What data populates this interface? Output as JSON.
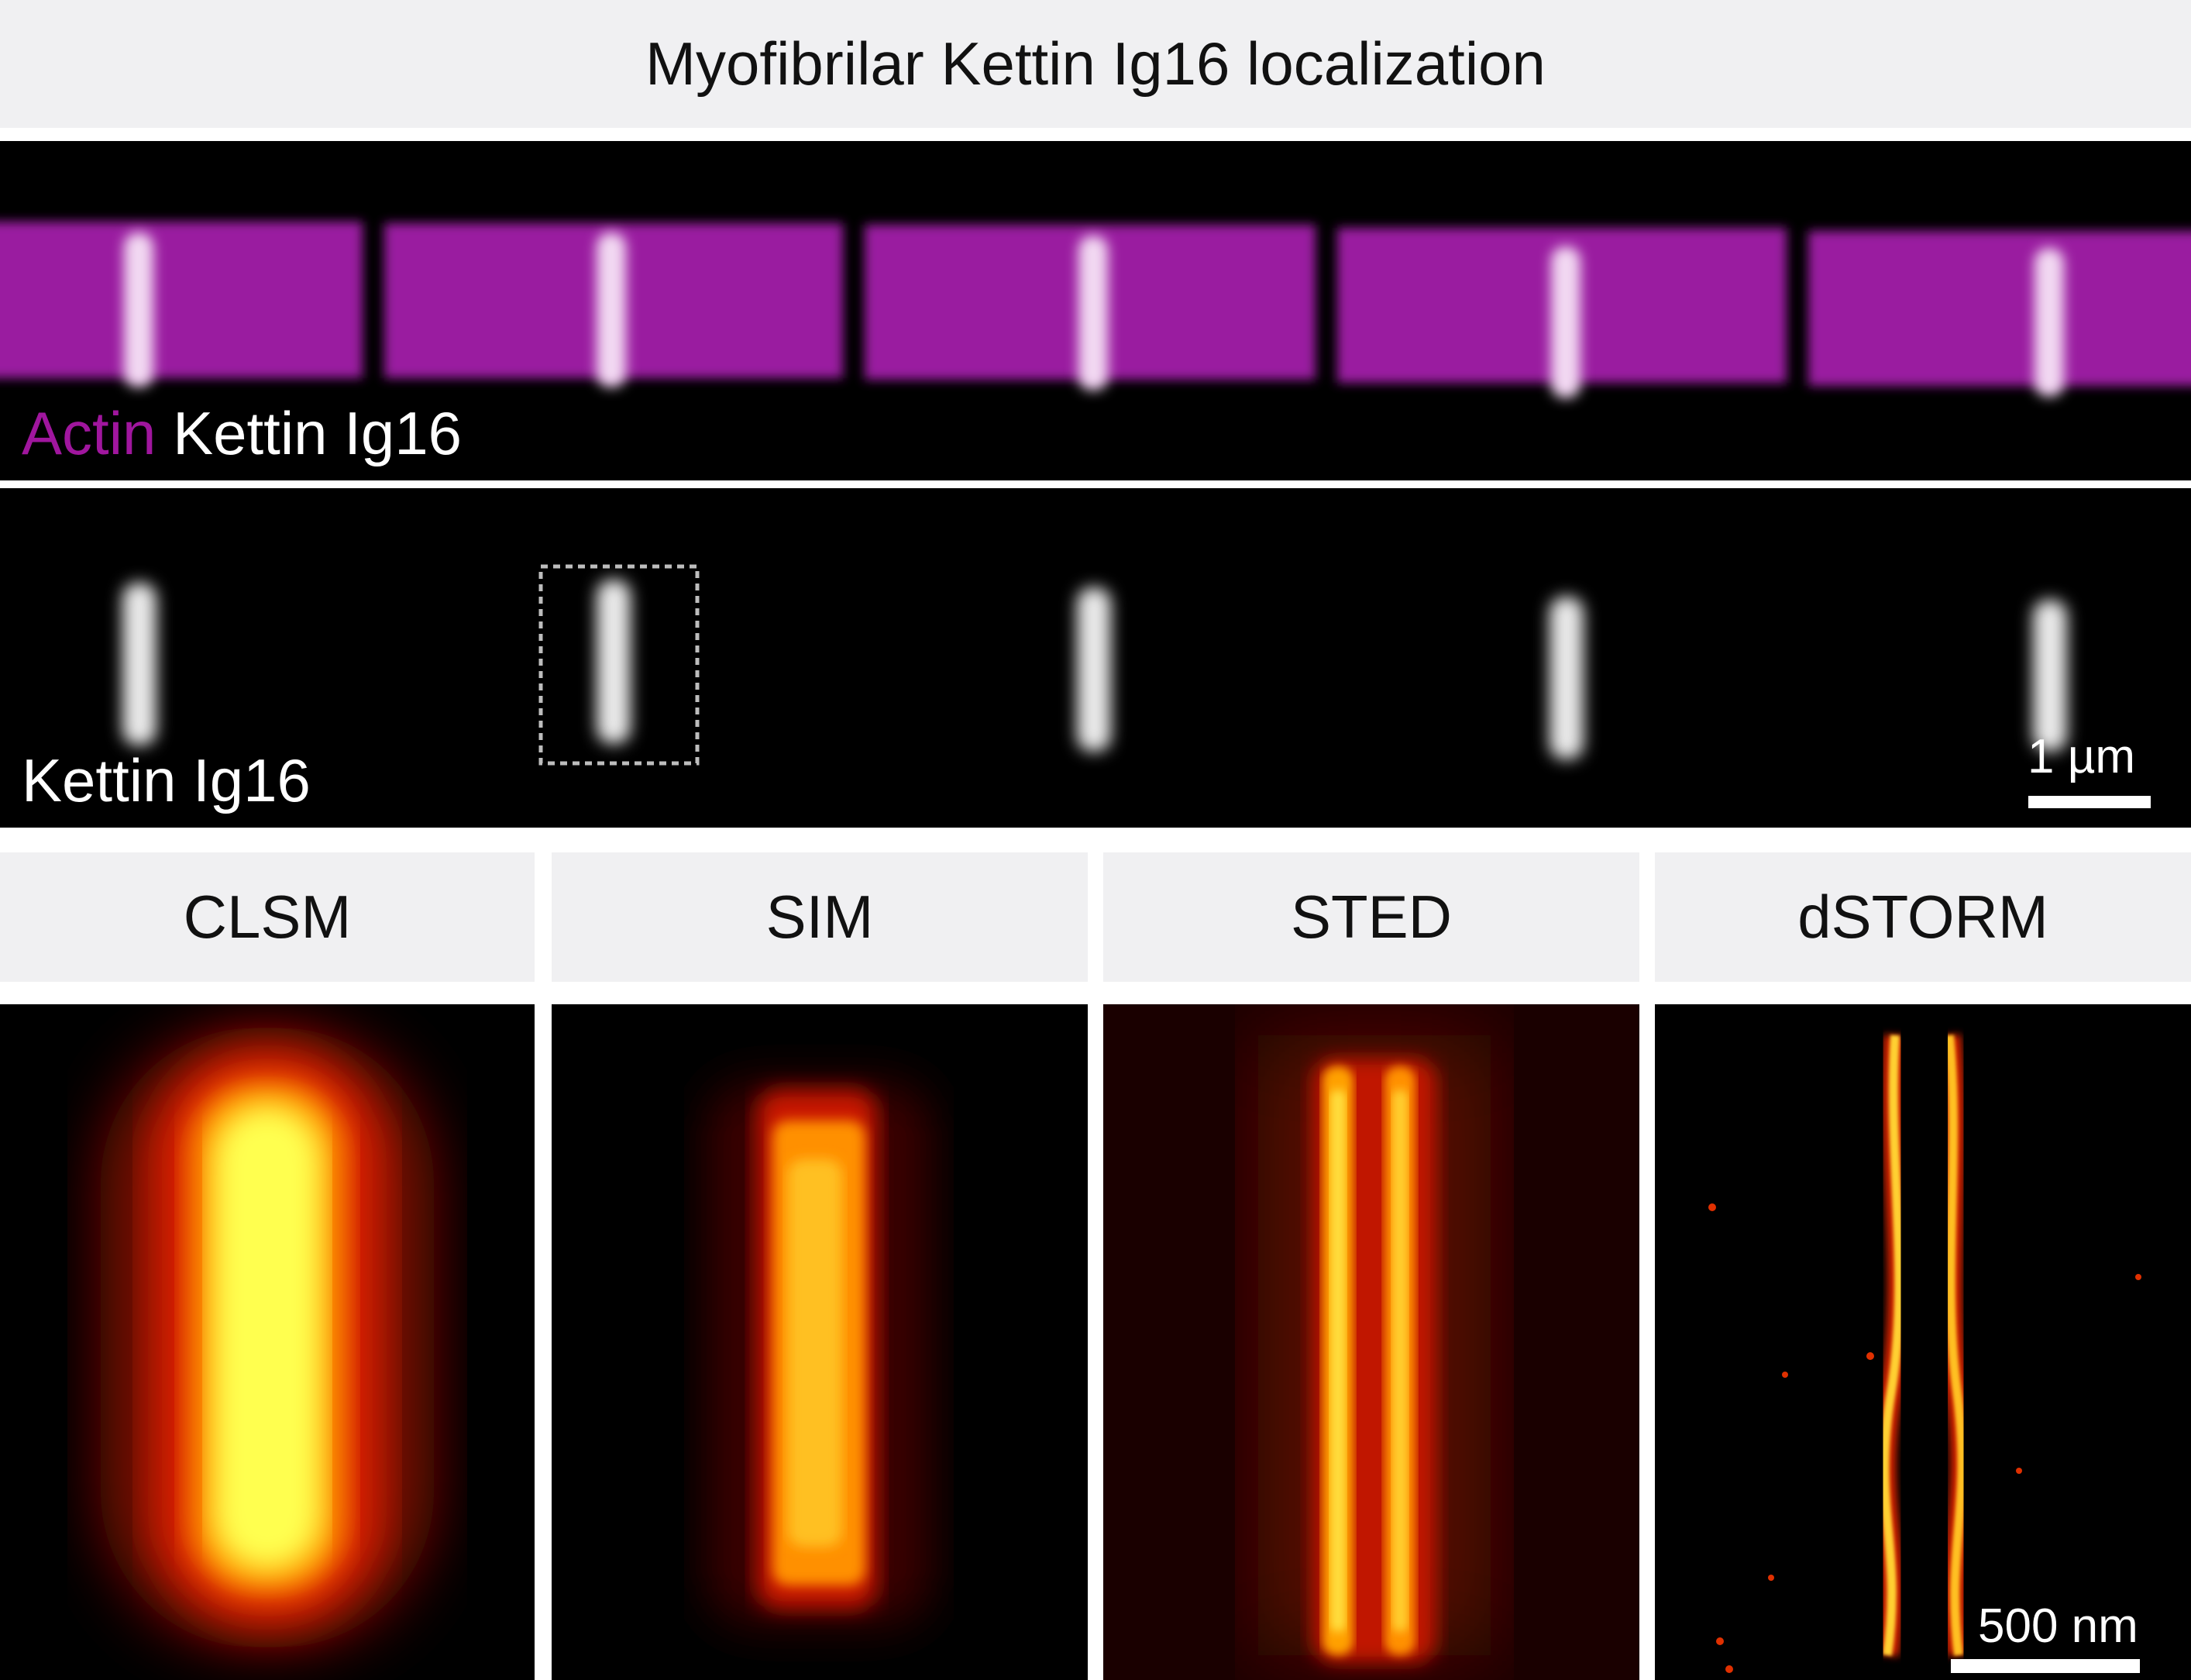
{
  "title": "Myofibrilar Kettin Ig16 localization",
  "overlay_panel": {
    "label_actin": "Actin",
    "label_kettin": "Kettin Ig16",
    "actin_color": "#a0169e"
  },
  "kettin_panel": {
    "label": "Kettin Ig16",
    "scalebar": "1 µm"
  },
  "methods": [
    {
      "name": "CLSM"
    },
    {
      "name": "SIM"
    },
    {
      "name": "STED"
    },
    {
      "name": "dSTORM",
      "scalebar": "500 nm"
    }
  ],
  "colors": {
    "header_bg": "#f0f0f2",
    "panel_bg": "#000000",
    "kettin_white": "#ffffff",
    "heatmap_hot": "#ffff40"
  }
}
